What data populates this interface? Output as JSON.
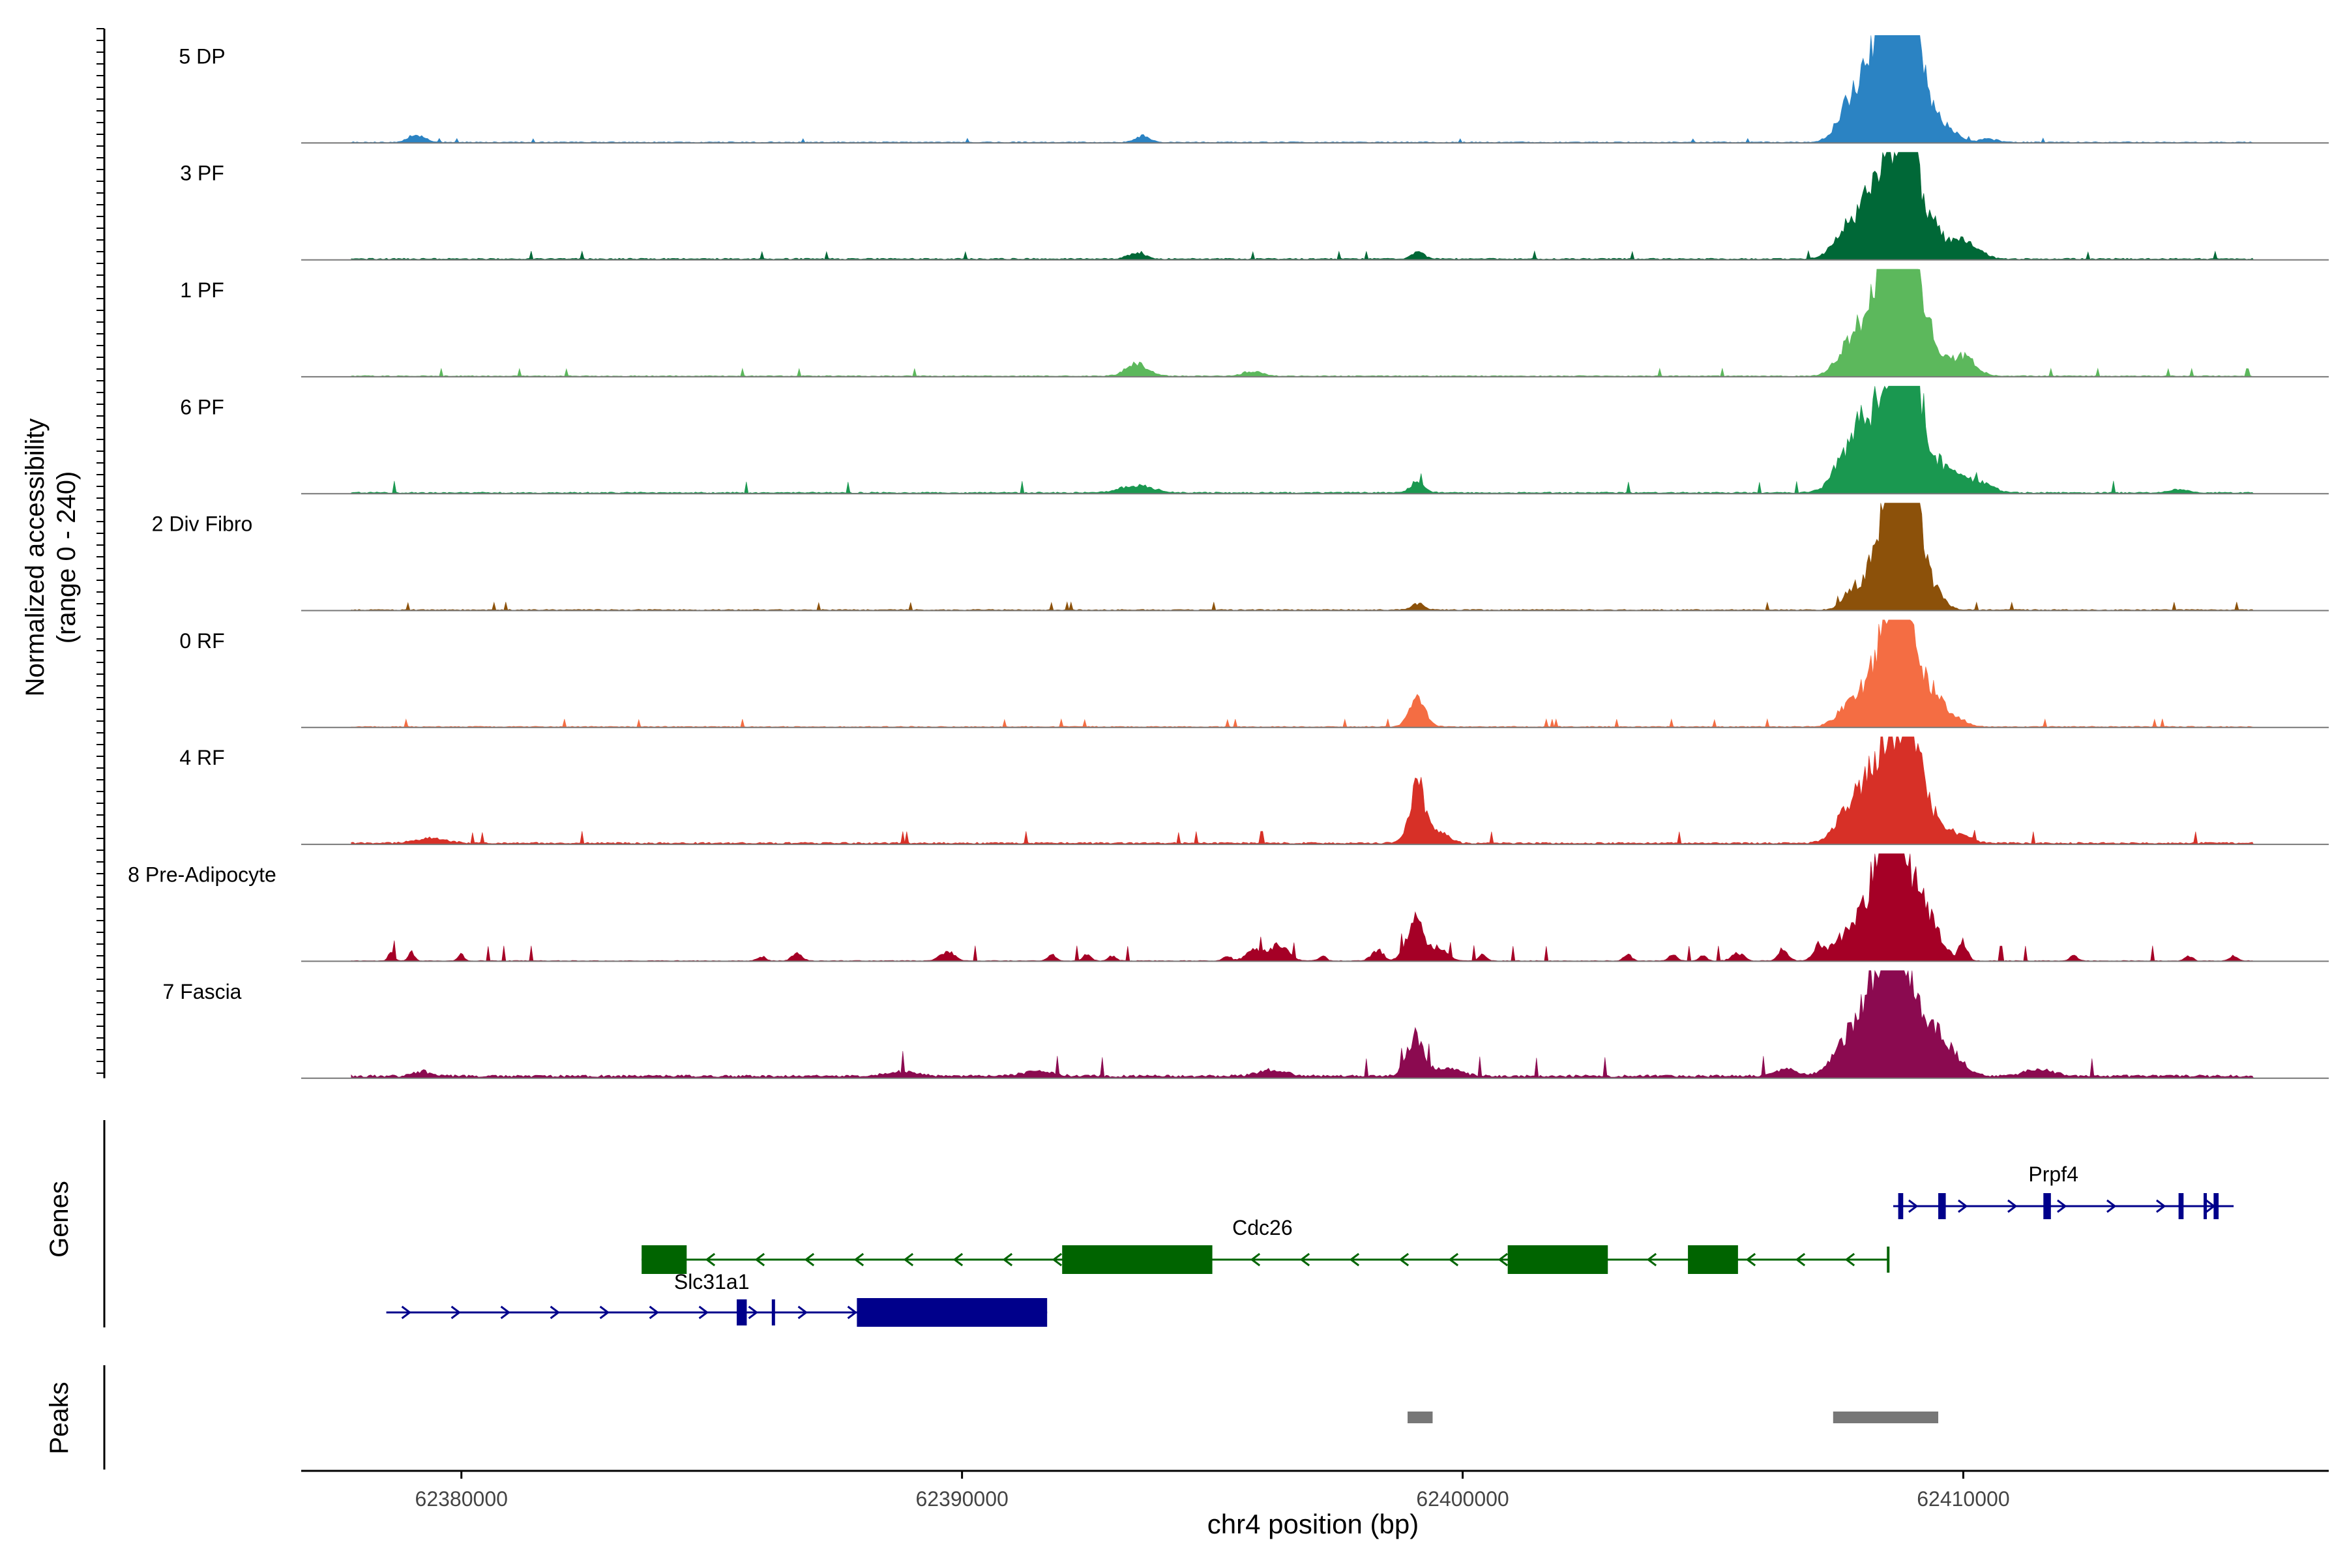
{
  "chart_data": {
    "type": "area",
    "title": "",
    "xlabel": "chr4 position (bp)",
    "ylabel_line1": "Normalized accessibility",
    "ylabel_line2": "(range 0 - 240)",
    "xlim": [
      62376800,
      62417300
    ],
    "xticks": [
      {
        "value": 62380000,
        "label": "62380000"
      },
      {
        "value": 62390000,
        "label": "62390000"
      },
      {
        "value": 62400000,
        "label": "62400000"
      },
      {
        "value": 62410000,
        "label": "62410000"
      }
    ],
    "ylim": [
      0,
      240
    ],
    "tracks": [
      {
        "name": "5 DP",
        "color": "#2b83c3",
        "baseline": 0.3,
        "noise": 0.01,
        "noise_start": 62377800,
        "noise_end": 62415800,
        "peaks": [
          [
            62379100,
            160,
            2.6
          ],
          [
            62393600,
            140,
            2.2
          ],
          [
            62407700,
            240,
            8
          ],
          [
            62408100,
            300,
            16
          ],
          [
            62408400,
            220,
            12
          ],
          [
            62408700,
            300,
            33
          ],
          [
            62408900,
            180,
            28
          ],
          [
            62409250,
            220,
            10
          ],
          [
            62409700,
            200,
            4
          ],
          [
            62410500,
            200,
            1
          ]
        ]
      },
      {
        "name": "3 PF",
        "color": "#006837",
        "baseline": 0.4,
        "noise": 0.02,
        "noise_start": 62377800,
        "noise_end": 62415800,
        "peaks": [
          [
            62393500,
            160,
            2.2
          ],
          [
            62399100,
            120,
            2.5
          ],
          [
            62407700,
            260,
            10
          ],
          [
            62408200,
            220,
            16
          ],
          [
            62408700,
            300,
            33
          ],
          [
            62408950,
            160,
            18
          ],
          [
            62409350,
            220,
            10
          ],
          [
            62409900,
            220,
            5
          ],
          [
            62410200,
            220,
            3
          ]
        ]
      },
      {
        "name": "1 PF",
        "color": "#5cb85c",
        "baseline": 0.3,
        "noise": 0.02,
        "noise_start": 62377800,
        "noise_end": 62415800,
        "peaks": [
          [
            62393500,
            220,
            4
          ],
          [
            62395800,
            200,
            1.5
          ],
          [
            62407700,
            240,
            8
          ],
          [
            62408100,
            260,
            14
          ],
          [
            62408500,
            180,
            18
          ],
          [
            62408700,
            300,
            33
          ],
          [
            62408900,
            180,
            22
          ],
          [
            62409300,
            220,
            12
          ],
          [
            62409900,
            220,
            4
          ],
          [
            62410100,
            220,
            3
          ]
        ]
      },
      {
        "name": "6 PF",
        "color": "#1a9850",
        "baseline": 0.4,
        "noise": 0.03,
        "noise_start": 62377800,
        "noise_end": 62415800,
        "peaks": [
          [
            62393500,
            300,
            2.5
          ],
          [
            62399100,
            140,
            3.5
          ],
          [
            62407700,
            280,
            12
          ],
          [
            62408100,
            220,
            18
          ],
          [
            62408500,
            180,
            16
          ],
          [
            62408750,
            300,
            33
          ],
          [
            62408950,
            180,
            22
          ],
          [
            62409350,
            260,
            10
          ],
          [
            62409900,
            220,
            5
          ],
          [
            62410400,
            220,
            3
          ],
          [
            62414300,
            200,
            1
          ]
        ]
      },
      {
        "name": "2 Div Fibro",
        "color": "#8c510a",
        "baseline": 0.3,
        "noise": 0.02,
        "noise_start": 62377800,
        "noise_end": 62415800,
        "peaks": [
          [
            62399100,
            120,
            2
          ],
          [
            62407800,
            200,
            6
          ],
          [
            62408200,
            200,
            8
          ],
          [
            62408500,
            180,
            16
          ],
          [
            62408750,
            300,
            34
          ],
          [
            62408950,
            160,
            22
          ],
          [
            62409350,
            220,
            6
          ]
        ]
      },
      {
        "name": "0 RF",
        "color": "#f46d43",
        "baseline": 0.3,
        "noise": 0.02,
        "noise_start": 62377800,
        "noise_end": 62415800,
        "peaks": [
          [
            62399100,
            160,
            9
          ],
          [
            62407700,
            240,
            6
          ],
          [
            62408100,
            220,
            10
          ],
          [
            62408500,
            180,
            12
          ],
          [
            62408700,
            300,
            32
          ],
          [
            62408900,
            160,
            20
          ],
          [
            62409350,
            220,
            10
          ],
          [
            62409800,
            220,
            3
          ]
        ]
      },
      {
        "name": "4 RF",
        "color": "#d73027",
        "baseline": 0.5,
        "noise": 0.03,
        "noise_start": 62377800,
        "noise_end": 62415800,
        "peaks": [
          [
            62379400,
            300,
            1.5
          ],
          [
            62399100,
            160,
            18
          ],
          [
            62399550,
            180,
            3
          ],
          [
            62407700,
            260,
            10
          ],
          [
            62408100,
            220,
            15
          ],
          [
            62408450,
            180,
            12
          ],
          [
            62408750,
            300,
            28
          ],
          [
            62408950,
            160,
            20
          ],
          [
            62409350,
            220,
            8
          ],
          [
            62409900,
            220,
            3
          ]
        ]
      },
      {
        "name": "8 Pre-Adipocyte",
        "color": "#a50026",
        "baseline": 0.2,
        "noise": 0.04,
        "noise_start": 62377800,
        "noise_end": 62415800,
        "peaks": [
          [
            62378600,
            60,
            2.5
          ],
          [
            62379000,
            60,
            3
          ],
          [
            62380000,
            60,
            2
          ],
          [
            62386000,
            80,
            1.5
          ],
          [
            62386700,
            100,
            2.5
          ],
          [
            62389700,
            140,
            3
          ],
          [
            62391800,
            80,
            2
          ],
          [
            62392500,
            80,
            2
          ],
          [
            62393000,
            80,
            1.5
          ],
          [
            62395300,
            80,
            1.5
          ],
          [
            62395800,
            140,
            3.5
          ],
          [
            62396300,
            200,
            5
          ],
          [
            62397200,
            80,
            1.5
          ],
          [
            62398300,
            120,
            3.5
          ],
          [
            62399050,
            160,
            14
          ],
          [
            62399500,
            180,
            4
          ],
          [
            62400400,
            80,
            2
          ],
          [
            62403300,
            80,
            2
          ],
          [
            62404200,
            80,
            2
          ],
          [
            62404800,
            80,
            1.5
          ],
          [
            62405500,
            120,
            2.5
          ],
          [
            62406400,
            100,
            4
          ],
          [
            62407100,
            100,
            4
          ],
          [
            62407700,
            300,
            8
          ],
          [
            62408200,
            260,
            16
          ],
          [
            62408550,
            220,
            20
          ],
          [
            62408800,
            320,
            30
          ],
          [
            62409400,
            220,
            8
          ],
          [
            62410000,
            80,
            6
          ],
          [
            62412200,
            80,
            1.5
          ],
          [
            62414500,
            80,
            1.5
          ],
          [
            62415400,
            80,
            1.5
          ]
        ]
      },
      {
        "name": "7 Fascia",
        "color": "#8b0a50",
        "baseline": 0.8,
        "noise": 0.05,
        "noise_start": 62377800,
        "noise_end": 62415800,
        "peaks": [
          [
            62379200,
            160,
            1.5
          ],
          [
            62388800,
            300,
            1.5
          ],
          [
            62391500,
            300,
            1.5
          ],
          [
            62396200,
            260,
            2
          ],
          [
            62399050,
            160,
            13
          ],
          [
            62399700,
            260,
            2.5
          ],
          [
            62406500,
            200,
            2.5
          ],
          [
            62407700,
            300,
            11
          ],
          [
            62408150,
            260,
            18
          ],
          [
            62408500,
            220,
            20
          ],
          [
            62408800,
            300,
            35
          ],
          [
            62409400,
            260,
            10
          ],
          [
            62409800,
            260,
            5
          ],
          [
            62411500,
            300,
            2
          ]
        ]
      }
    ],
    "genes_label": "Genes",
    "genes": [
      {
        "name": "Slc31a1",
        "strand": "+",
        "color": "#00008b",
        "row": 2,
        "start": 62378500,
        "end": 62391700,
        "exons": [
          [
            62385500,
            62385700
          ],
          [
            62386200,
            62386250
          ],
          [
            62387900,
            62391700
          ]
        ],
        "label_at": 62385000
      },
      {
        "name": "Cdc26",
        "strand": "-",
        "color": "#006400",
        "row": 1,
        "start": 62383600,
        "end": 62408500,
        "exons": [
          [
            62383600,
            62384500
          ],
          [
            62392000,
            62395000
          ],
          [
            62400900,
            62402900
          ],
          [
            62404500,
            62405500
          ]
        ],
        "label_at": 62396000
      },
      {
        "name": "Prpf4",
        "strand": "+",
        "color": "#00008b",
        "row": 0,
        "start": 62408600,
        "end": 62415400,
        "exons": [
          [
            62408700,
            62408800
          ],
          [
            62409500,
            62409650
          ],
          [
            62411600,
            62411750
          ],
          [
            62414300,
            62414400
          ],
          [
            62414800,
            62414850
          ],
          [
            62415000,
            62415100
          ]
        ],
        "label_at": 62411800
      }
    ],
    "peaks_label": "Peaks",
    "peak_regions": [
      [
        62398900,
        62399400
      ],
      [
        62407400,
        62409500
      ]
    ]
  }
}
